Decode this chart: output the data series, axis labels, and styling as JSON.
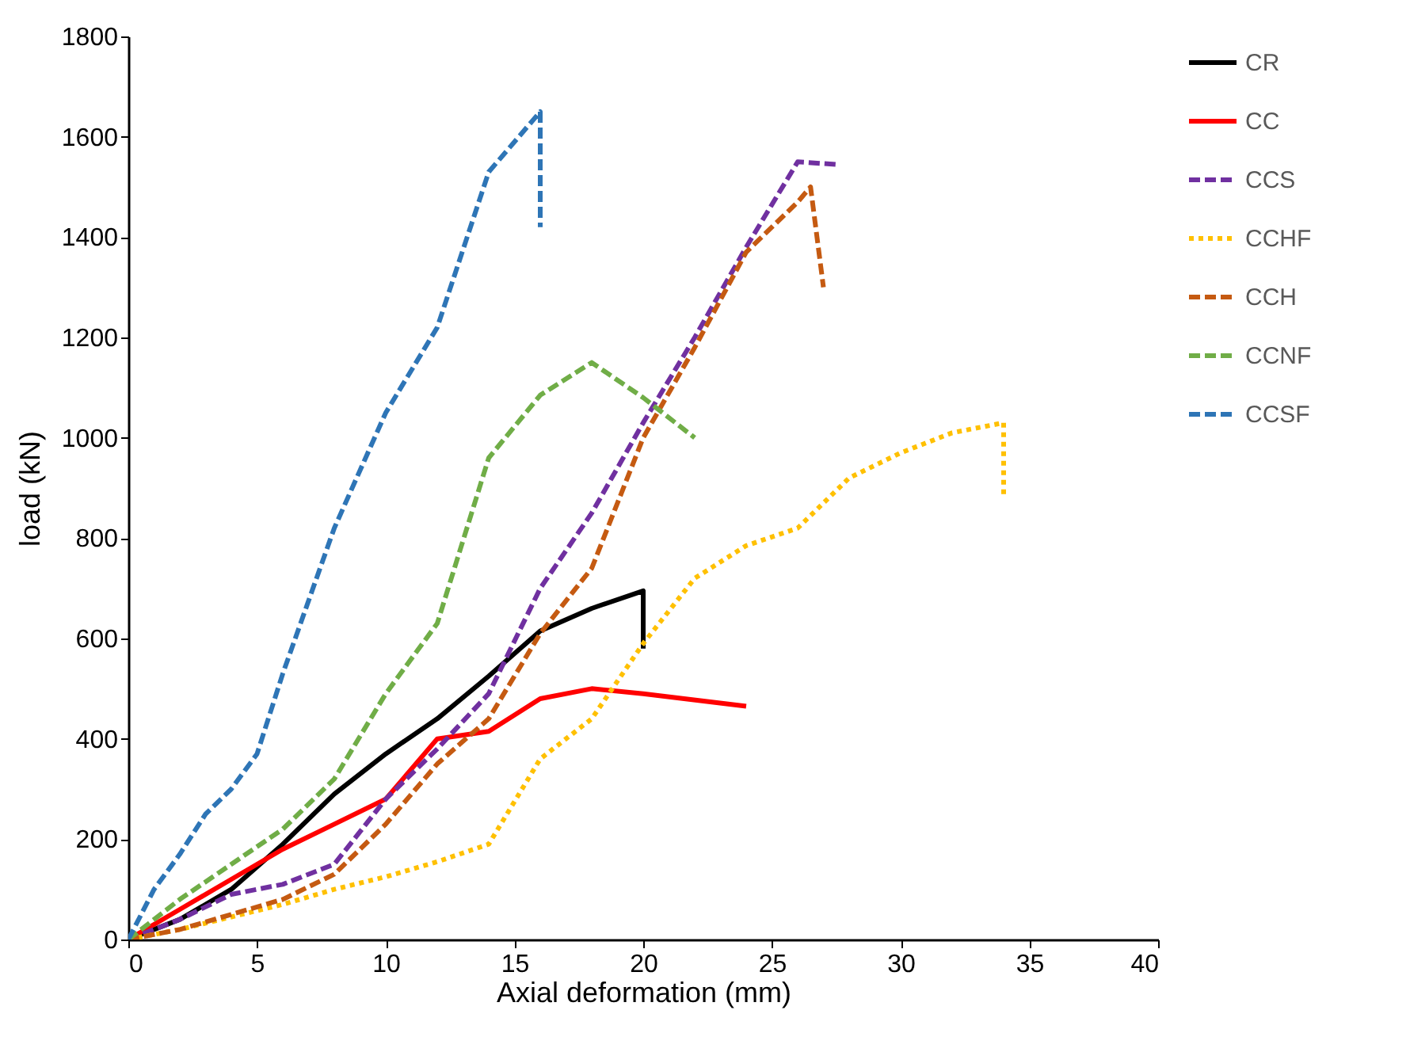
{
  "chart_data": {
    "type": "line",
    "xlabel": "Axial deformation (mm)",
    "ylabel": "load (kN)",
    "xlim": [
      0,
      40
    ],
    "xticks": [
      0,
      5,
      10,
      15,
      20,
      25,
      30,
      35,
      40
    ],
    "ylim": [
      0,
      1800
    ],
    "yticks": [
      0,
      200,
      400,
      600,
      800,
      1000,
      1200,
      1400,
      1600,
      1800
    ],
    "grid": false,
    "legend": "right",
    "marker": "none",
    "series": [
      {
        "name": "CR",
        "color": "#000000",
        "line_style": "solid",
        "x": [
          0,
          2,
          4,
          6,
          8,
          10,
          12,
          14,
          16,
          18,
          20,
          20
        ],
        "values": [
          0,
          40,
          100,
          190,
          290,
          370,
          440,
          525,
          615,
          660,
          695,
          580
        ]
      },
      {
        "name": "CC",
        "color": "#ff0000",
        "line_style": "solid",
        "x": [
          0,
          2,
          4,
          6,
          8,
          10,
          12,
          14,
          16,
          18,
          20,
          24
        ],
        "values": [
          0,
          60,
          120,
          180,
          230,
          280,
          400,
          415,
          480,
          500,
          490,
          465
        ]
      },
      {
        "name": "CCS",
        "color": "#7030a0",
        "line_style": "dashed",
        "x": [
          0,
          2,
          4,
          6,
          8,
          10,
          12,
          14,
          16,
          18,
          20,
          22,
          24,
          26,
          27.5
        ],
        "values": [
          0,
          40,
          90,
          110,
          150,
          280,
          380,
          490,
          700,
          850,
          1030,
          1200,
          1380,
          1550,
          1545
        ]
      },
      {
        "name": "CCHF",
        "color": "#ffc000",
        "line_style": "dotted",
        "x": [
          0,
          2,
          4,
          6,
          8,
          10,
          12,
          14,
          16,
          18,
          20,
          22,
          24,
          26,
          28,
          30,
          32,
          34,
          34
        ],
        "values": [
          0,
          20,
          45,
          70,
          100,
          125,
          155,
          190,
          360,
          440,
          590,
          720,
          785,
          820,
          920,
          970,
          1010,
          1030,
          880
        ]
      },
      {
        "name": "CCH",
        "color": "#c55a11",
        "line_style": "dashed",
        "x": [
          0,
          2,
          4,
          6,
          8,
          10,
          12,
          14,
          16,
          18,
          20,
          22,
          24,
          26,
          26.5,
          27
        ],
        "values": [
          0,
          20,
          50,
          80,
          130,
          230,
          350,
          440,
          610,
          740,
          1000,
          1180,
          1370,
          1470,
          1500,
          1300
        ]
      },
      {
        "name": "CCNF",
        "color": "#70ad47",
        "line_style": "dashed",
        "x": [
          0,
          2,
          4,
          6,
          8,
          10,
          12,
          14,
          16,
          18,
          20,
          22
        ],
        "values": [
          0,
          80,
          150,
          220,
          320,
          490,
          630,
          960,
          1085,
          1150,
          1080,
          1000
        ]
      },
      {
        "name": "CCSF",
        "color": "#2e75b6",
        "line_style": "dashed",
        "x": [
          0,
          1,
          2,
          3,
          4,
          5,
          6,
          8,
          10,
          12,
          14,
          16,
          16
        ],
        "values": [
          0,
          100,
          170,
          250,
          300,
          370,
          530,
          820,
          1050,
          1220,
          1530,
          1650,
          1420
        ]
      }
    ]
  }
}
